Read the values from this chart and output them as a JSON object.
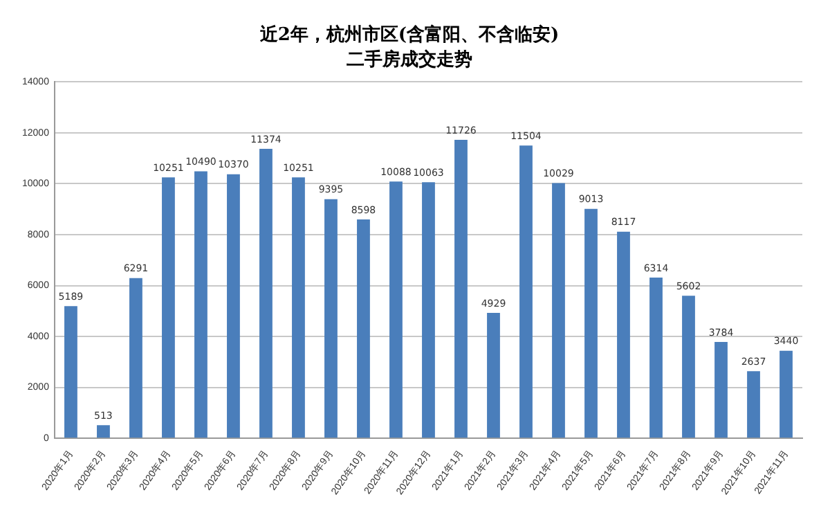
{
  "chart_data": {
    "type": "bar",
    "title": "近2年，杭州市区(含富阳、不含临安)",
    "subtitle": "二手房成交走势",
    "categories": [
      "2020年1月",
      "2020年2月",
      "2020年3月",
      "2020年4月",
      "2020年5月",
      "2020年6月",
      "2020年7月",
      "2020年8月",
      "2020年9月",
      "2020年10月",
      "2020年11月",
      "2020年12月",
      "2021年1月",
      "2021年2月",
      "2021年3月",
      "2021年4月",
      "2021年5月",
      "2021年6月",
      "2021年7月",
      "2021年8月",
      "2021年9月",
      "2021年10月",
      "2021年11月"
    ],
    "values": [
      5189,
      513,
      6291,
      10251,
      10490,
      10370,
      11374,
      10251,
      9395,
      8598,
      10088,
      10063,
      11726,
      4929,
      11504,
      10029,
      9013,
      8117,
      6314,
      5602,
      3784,
      2637,
      3440
    ],
    "color": "#4a7ebb",
    "ylim": [
      0,
      14000
    ],
    "yticks": [
      0,
      2000,
      4000,
      6000,
      8000,
      10000,
      12000,
      14000
    ],
    "grid": "y",
    "data_labels": true
  }
}
